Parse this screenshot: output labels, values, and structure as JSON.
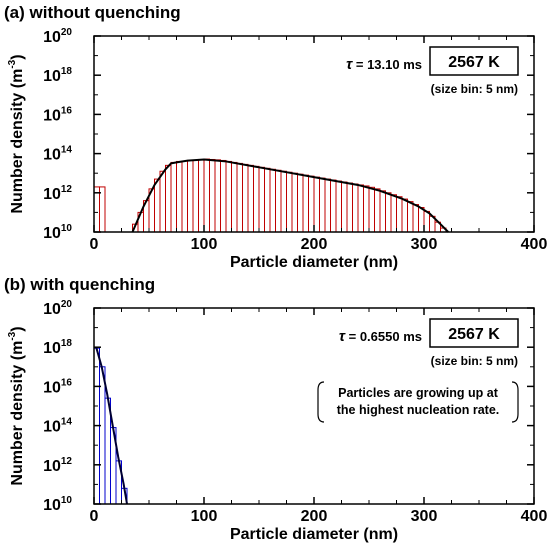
{
  "chart_data": [
    {
      "type": "bar",
      "panel_label": "(a) without quenching",
      "xlabel": "Particle diameter (nm)",
      "ylabel_base": "Number density (m",
      "ylabel_exp": "-3",
      "ylabel_close": ")",
      "xlim": [
        0,
        400
      ],
      "ylim": [
        10000000000.0,
        1e+20
      ],
      "yscale": "log",
      "xticks": [
        "0",
        "100",
        "200",
        "300",
        "400"
      ],
      "yticks": [
        {
          "base": "10",
          "exp": "10"
        },
        {
          "base": "10",
          "exp": "12"
        },
        {
          "base": "10",
          "exp": "14"
        },
        {
          "base": "10",
          "exp": "16"
        },
        {
          "base": "10",
          "exp": "18"
        },
        {
          "base": "10",
          "exp": "20"
        }
      ],
      "bar_color": "#c00000",
      "line_color": "#000000",
      "bin_width": 5,
      "bins": [
        0,
        5,
        35,
        40,
        45,
        50,
        55,
        60,
        65,
        70,
        75,
        80,
        85,
        90,
        95,
        100,
        105,
        110,
        115,
        120,
        125,
        130,
        135,
        140,
        145,
        150,
        155,
        160,
        165,
        170,
        175,
        180,
        185,
        190,
        195,
        200,
        205,
        210,
        215,
        220,
        225,
        230,
        235,
        240,
        245,
        250,
        255,
        260,
        265,
        270,
        275,
        280,
        285,
        290,
        295,
        300,
        305,
        310,
        315
      ],
      "log10_values": [
        12.3,
        12.3,
        10.4,
        11.0,
        11.6,
        12.2,
        12.7,
        13.1,
        13.4,
        13.55,
        13.6,
        13.62,
        13.65,
        13.67,
        13.7,
        13.72,
        13.7,
        13.68,
        13.65,
        13.6,
        13.55,
        13.5,
        13.45,
        13.4,
        13.35,
        13.3,
        13.25,
        13.2,
        13.15,
        13.1,
        13.05,
        13.0,
        12.95,
        12.9,
        12.85,
        12.8,
        12.75,
        12.7,
        12.65,
        12.6,
        12.55,
        12.5,
        12.45,
        12.4,
        12.35,
        12.28,
        12.2,
        12.1,
        12.0,
        11.9,
        11.8,
        11.68,
        11.55,
        11.4,
        11.25,
        11.05,
        10.8,
        10.5,
        10.2
      ],
      "curve": {
        "x": [
          35,
          45,
          55,
          65,
          70,
          75,
          85,
          100,
          120,
          150,
          180,
          210,
          240,
          260,
          280,
          295,
          305,
          315,
          322
        ],
        "log10_y": [
          10.0,
          11.3,
          12.4,
          13.2,
          13.5,
          13.55,
          13.64,
          13.7,
          13.6,
          13.3,
          13.0,
          12.7,
          12.4,
          12.1,
          11.7,
          11.3,
          10.95,
          10.4,
          10.0
        ]
      },
      "tau_prefix": "τ",
      "tau_text": " = 13.10 ms",
      "temperature": "2567 K",
      "bin_note": "(size bin: 5 nm)"
    },
    {
      "type": "bar",
      "panel_label": "(b) with quenching",
      "xlabel": "Particle diameter (nm)",
      "ylabel_base": "Number density (m",
      "ylabel_exp": "-3",
      "ylabel_close": ")",
      "xlim": [
        0,
        400
      ],
      "ylim": [
        10000000000.0,
        1e+20
      ],
      "yscale": "log",
      "xticks": [
        "0",
        "100",
        "200",
        "300",
        "400"
      ],
      "yticks": [
        {
          "base": "10",
          "exp": "10"
        },
        {
          "base": "10",
          "exp": "12"
        },
        {
          "base": "10",
          "exp": "14"
        },
        {
          "base": "10",
          "exp": "16"
        },
        {
          "base": "10",
          "exp": "18"
        },
        {
          "base": "10",
          "exp": "20"
        }
      ],
      "bar_color": "#0000cc",
      "line_color": "#000033",
      "bin_width": 5,
      "bins": [
        0,
        5,
        10,
        15,
        20,
        25
      ],
      "log10_values": [
        17.95,
        17.0,
        15.4,
        13.9,
        12.2,
        10.8
      ],
      "curve": {
        "x": [
          2,
          7,
          12,
          17,
          22,
          27,
          30
        ],
        "log10_y": [
          18.0,
          17.0,
          15.6,
          14.0,
          12.4,
          11.0,
          10.0
        ]
      },
      "tau_prefix": "τ",
      "tau_text": " = 0.6550 ms",
      "temperature": "2567 K",
      "bin_note": "(size bin: 5 nm)",
      "note_lines": [
        "Particles are growing up at",
        "the highest nucleation rate."
      ]
    }
  ]
}
